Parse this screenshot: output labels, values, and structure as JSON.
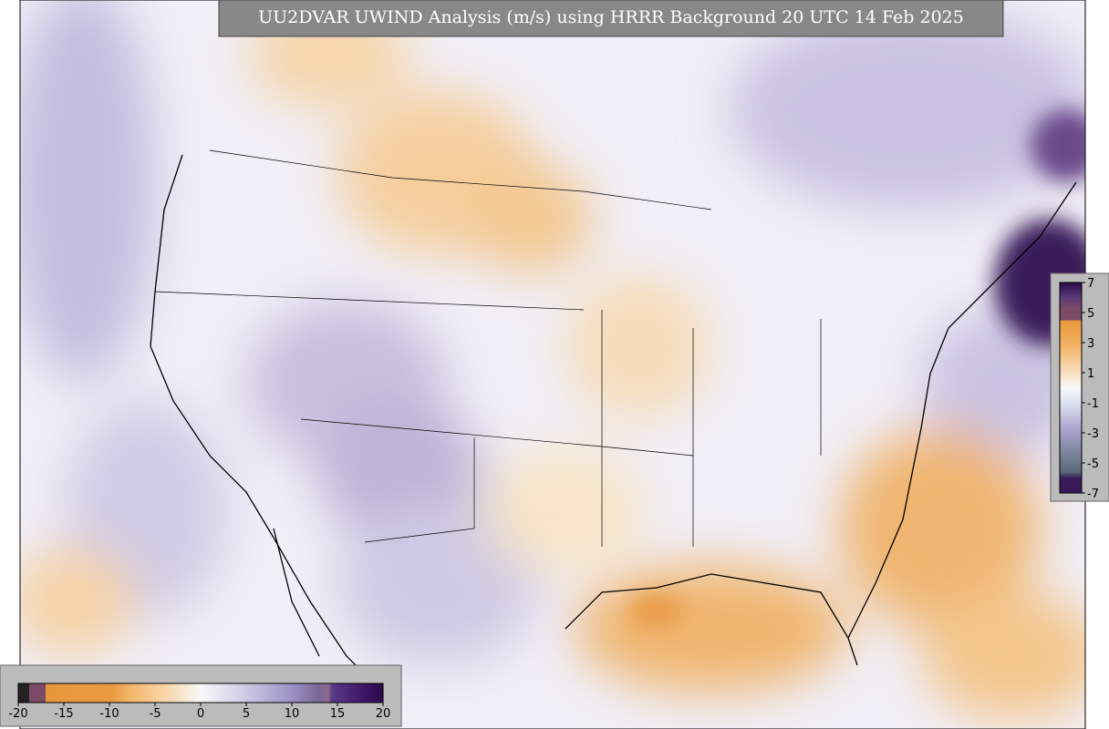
{
  "title": "UU2DVAR UWIND Analysis (m/s) using HRRR Background 20 UTC 14 Feb 2025",
  "colorbar_right": {
    "ticks": [
      7,
      5,
      3,
      1,
      -1,
      -3,
      -5,
      -7
    ]
  },
  "colorbar_bottom": {
    "ticks": [
      -20,
      -15,
      -10,
      -5,
      0,
      5,
      10,
      15,
      20
    ]
  }
}
